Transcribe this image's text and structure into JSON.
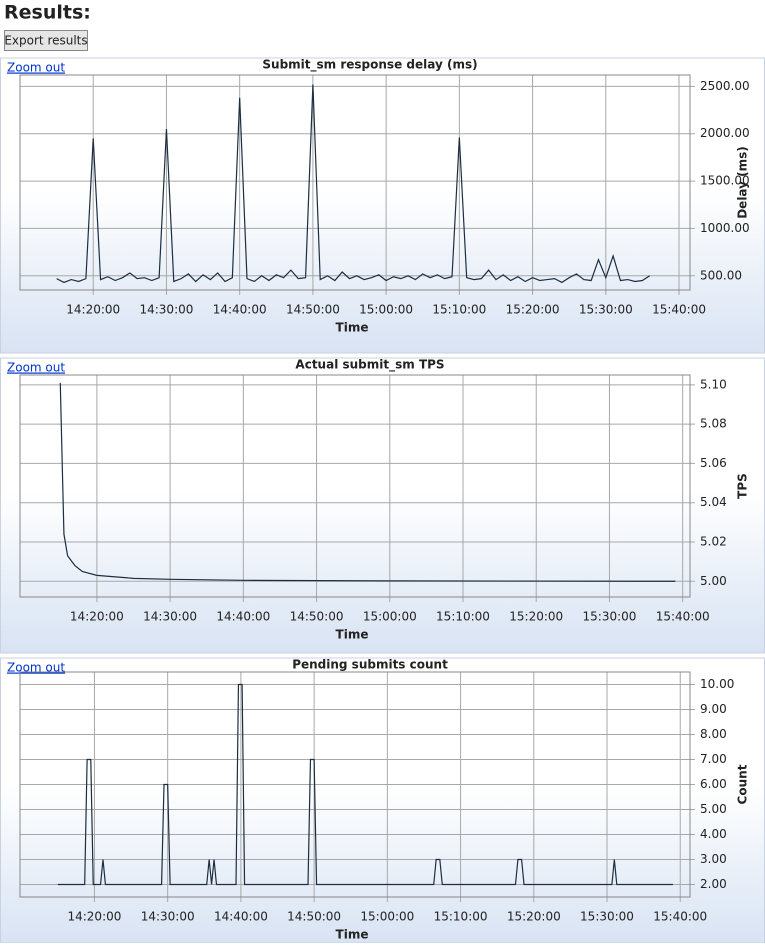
{
  "header": {
    "title": "Results:",
    "export_button": "Export results"
  },
  "zoom_links": [
    "Zoom out",
    "Zoom out",
    "Zoom out"
  ],
  "chart_data": [
    {
      "type": "line",
      "title": "Submit_sm response delay (ms)",
      "xlabel": "Time",
      "ylabel": "Delay (ms)",
      "color": "#1c2e40",
      "grid": true,
      "x": [
        "14:15:00",
        "14:16:00",
        "14:17:00",
        "14:18:00",
        "14:19:00",
        "14:20:00",
        "14:21:00",
        "14:22:00",
        "14:23:00",
        "14:24:00",
        "14:25:00",
        "14:26:00",
        "14:27:00",
        "14:28:00",
        "14:29:00",
        "14:30:00",
        "14:31:00",
        "14:32:00",
        "14:33:00",
        "14:34:00",
        "14:35:00",
        "14:36:00",
        "14:37:00",
        "14:38:00",
        "14:39:00",
        "14:40:00",
        "14:41:00",
        "14:42:00",
        "14:43:00",
        "14:44:00",
        "14:45:00",
        "14:46:00",
        "14:47:00",
        "14:48:00",
        "14:49:00",
        "14:50:00",
        "14:51:00",
        "14:52:00",
        "14:53:00",
        "14:54:00",
        "14:55:00",
        "14:56:00",
        "14:57:00",
        "14:58:00",
        "14:59:00",
        "15:00:00",
        "15:01:00",
        "15:02:00",
        "15:03:00",
        "15:04:00",
        "15:05:00",
        "15:06:00",
        "15:07:00",
        "15:08:00",
        "15:09:00",
        "15:10:00",
        "15:11:00",
        "15:12:00",
        "15:13:00",
        "15:14:00",
        "15:15:00",
        "15:16:00",
        "15:17:00",
        "15:18:00",
        "15:19:00",
        "15:20:00",
        "15:21:00",
        "15:22:00",
        "15:23:00",
        "15:24:00",
        "15:25:00",
        "15:26:00",
        "15:27:00",
        "15:28:00",
        "15:29:00",
        "15:30:00",
        "15:31:00",
        "15:32:00",
        "15:33:00",
        "15:34:00",
        "15:35:00",
        "15:36:00"
      ],
      "values": [
        470,
        430,
        460,
        440,
        470,
        1950,
        460,
        490,
        450,
        480,
        530,
        470,
        480,
        450,
        480,
        2050,
        440,
        470,
        520,
        440,
        510,
        460,
        530,
        440,
        480,
        2380,
        470,
        440,
        500,
        450,
        510,
        480,
        560,
        470,
        480,
        2520,
        460,
        500,
        450,
        540,
        470,
        500,
        460,
        480,
        510,
        450,
        490,
        470,
        500,
        460,
        520,
        480,
        510,
        470,
        490,
        1960,
        480,
        460,
        470,
        560,
        460,
        510,
        450,
        490,
        440,
        480,
        450,
        460,
        470,
        430,
        480,
        520,
        460,
        450,
        670,
        480,
        710,
        450,
        460,
        440,
        450,
        500
      ],
      "xlim": [
        "14:10:00",
        "15:41:30"
      ],
      "xticks": [
        "14:20:00",
        "14:30:00",
        "14:40:00",
        "14:50:00",
        "15:00:00",
        "15:10:00",
        "15:20:00",
        "15:30:00",
        "15:40:00"
      ],
      "ylim": [
        350,
        2620
      ],
      "yticks": [
        {
          "value": 500,
          "label": "500.00"
        },
        {
          "value": 1000,
          "label": "1000.00"
        },
        {
          "value": 1500,
          "label": "1500.00"
        },
        {
          "value": 2000,
          "label": "2000.00"
        },
        {
          "value": 2500,
          "label": "2500.00"
        }
      ]
    },
    {
      "type": "line",
      "title": "Actual submit_sm TPS",
      "xlabel": "Time",
      "ylabel": "TPS",
      "color": "#1c2e40",
      "grid": true,
      "x": [
        "14:15:00",
        "14:15:30",
        "14:16:00",
        "14:17:00",
        "14:18:00",
        "14:20:00",
        "14:25:00",
        "14:30:00",
        "14:40:00",
        "15:00:00",
        "15:39:00"
      ],
      "values": [
        5.101,
        5.024,
        5.013,
        5.008,
        5.005,
        5.003,
        5.0015,
        5.001,
        5.0005,
        5.0002,
        5.0
      ],
      "xlim": [
        "14:09:30",
        "15:41:00"
      ],
      "xticks": [
        "14:20:00",
        "14:30:00",
        "14:40:00",
        "14:50:00",
        "15:00:00",
        "15:10:00",
        "15:20:00",
        "15:30:00",
        "15:40:00"
      ],
      "ylim": [
        4.992,
        5.105
      ],
      "yticks": [
        {
          "value": 5.0,
          "label": "5.00"
        },
        {
          "value": 5.02,
          "label": "5.02"
        },
        {
          "value": 5.04,
          "label": "5.04"
        },
        {
          "value": 5.06,
          "label": "5.06"
        },
        {
          "value": 5.08,
          "label": "5.08"
        },
        {
          "value": 5.1,
          "label": "5.10"
        }
      ]
    },
    {
      "type": "line",
      "title": "Pending submits count",
      "xlabel": "Time",
      "ylabel": "Count",
      "color": "#1c2e40",
      "grid": true,
      "x": [
        "14:15:00",
        "14:18:40",
        "14:19:00",
        "14:19:30",
        "14:19:50",
        "14:20:50",
        "14:21:10",
        "14:21:30",
        "14:29:10",
        "14:29:30",
        "14:30:00",
        "14:30:20",
        "14:35:20",
        "14:35:40",
        "14:36:00",
        "14:36:20",
        "14:36:40",
        "14:39:20",
        "14:39:40",
        "14:40:10",
        "14:40:30",
        "14:49:10",
        "14:49:30",
        "14:50:00",
        "14:50:20",
        "15:06:20",
        "15:06:40",
        "15:07:10",
        "15:07:30",
        "15:17:30",
        "15:17:50",
        "15:18:20",
        "15:18:40",
        "15:30:40",
        "15:31:00",
        "15:31:20",
        "15:39:00"
      ],
      "values": [
        2,
        2,
        7,
        7,
        2,
        2,
        3,
        2,
        2,
        6,
        6,
        2,
        2,
        3,
        2,
        3,
        2,
        2,
        10,
        10,
        2,
        2,
        7,
        7,
        2,
        2,
        3,
        3,
        2,
        2,
        3,
        3,
        2,
        2,
        3,
        2,
        2
      ],
      "xlim": [
        "14:09:50",
        "15:41:20"
      ],
      "xticks": [
        "14:20:00",
        "14:30:00",
        "14:40:00",
        "14:50:00",
        "15:00:00",
        "15:10:00",
        "15:20:00",
        "15:30:00",
        "15:40:00"
      ],
      "ylim": [
        1.5,
        10.5
      ],
      "yticks": [
        {
          "value": 2,
          "label": "2.00"
        },
        {
          "value": 3,
          "label": "3.00"
        },
        {
          "value": 4,
          "label": "4.00"
        },
        {
          "value": 5,
          "label": "5.00"
        },
        {
          "value": 6,
          "label": "6.00"
        },
        {
          "value": 7,
          "label": "7.00"
        },
        {
          "value": 8,
          "label": "8.00"
        },
        {
          "value": 9,
          "label": "9.00"
        },
        {
          "value": 10,
          "label": "10.00"
        }
      ]
    }
  ]
}
